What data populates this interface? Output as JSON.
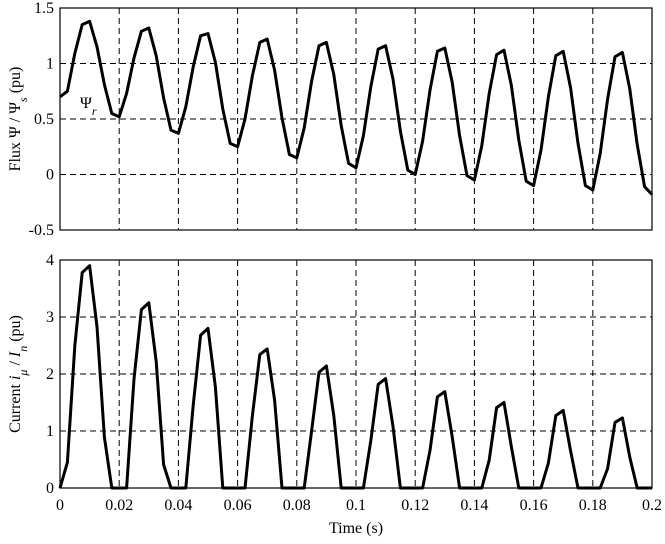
{
  "chart_data": [
    {
      "type": "line",
      "ylabel": [
        "Flux  Ψ / Ψ",
        "s",
        "  (pu)"
      ],
      "annotation": [
        "Ψ",
        "r"
      ],
      "color": "#000000",
      "grid": true,
      "xlim": [
        0,
        0.2
      ],
      "xticks": [
        0,
        0.02,
        0.04,
        0.06,
        0.08,
        0.1,
        0.12,
        0.14,
        0.16,
        0.18,
        0.2
      ],
      "ylim": [
        -0.5,
        1.5
      ],
      "yticks": [
        -0.5,
        0,
        0.5,
        1,
        1.5
      ],
      "x": [
        0,
        0.0025,
        0.005,
        0.0075,
        0.01,
        0.0125,
        0.015,
        0.0175,
        0.02,
        0.0225,
        0.025,
        0.0275,
        0.03,
        0.0325,
        0.035,
        0.0375,
        0.04,
        0.0425,
        0.045,
        0.0475,
        0.05,
        0.0525,
        0.055,
        0.0575,
        0.06,
        0.0625,
        0.065,
        0.0675,
        0.07,
        0.0725,
        0.075,
        0.0775,
        0.08,
        0.0825,
        0.085,
        0.0875,
        0.09,
        0.0925,
        0.095,
        0.0975,
        0.1,
        0.1025,
        0.105,
        0.1075,
        0.11,
        0.1125,
        0.115,
        0.1175,
        0.12,
        0.1225,
        0.125,
        0.1275,
        0.13,
        0.1325,
        0.135,
        0.1375,
        0.14,
        0.1425,
        0.145,
        0.1475,
        0.15,
        0.1525,
        0.155,
        0.1575,
        0.16,
        0.1625,
        0.165,
        0.1675,
        0.17,
        0.1725,
        0.175,
        0.1775,
        0.18,
        0.1825,
        0.185,
        0.1875,
        0.19,
        0.1925,
        0.195,
        0.1975,
        0.2
      ],
      "values": [
        0.7,
        0.75,
        1.09,
        1.35,
        1.38,
        1.15,
        0.81,
        0.55,
        0.52,
        0.73,
        1.05,
        1.29,
        1.32,
        1.07,
        0.69,
        0.4,
        0.37,
        0.61,
        0.97,
        1.25,
        1.27,
        1.01,
        0.59,
        0.28,
        0.25,
        0.5,
        0.89,
        1.19,
        1.22,
        0.94,
        0.51,
        0.18,
        0.15,
        0.42,
        0.84,
        1.16,
        1.19,
        0.9,
        0.44,
        0.1,
        0.06,
        0.35,
        0.79,
        1.13,
        1.16,
        0.86,
        0.39,
        0.04,
        0,
        0.3,
        0.76,
        1.11,
        1.14,
        0.83,
        0.35,
        -0.01,
        -0.05,
        0.26,
        0.73,
        1.08,
        1.12,
        0.8,
        0.31,
        -0.06,
        -0.1,
        0.22,
        0.7,
        1.07,
        1.11,
        0.78,
        0.28,
        -0.1,
        -0.14,
        0.19,
        0.68,
        1.06,
        1.1,
        0.77,
        0.27,
        -0.11,
        -0.18
      ]
    },
    {
      "type": "line",
      "ylabel": [
        "Current  ",
        "i",
        "μ",
        " / ",
        "I",
        "n",
        "  (pu)"
      ],
      "xlabel": "Time (s)",
      "color": "#000000",
      "grid": true,
      "xlim": [
        0,
        0.2
      ],
      "xticks": [
        0,
        0.02,
        0.04,
        0.06,
        0.08,
        0.1,
        0.12,
        0.14,
        0.16,
        0.18,
        0.2
      ],
      "ylim": [
        0,
        4
      ],
      "yticks": [
        0,
        1,
        2,
        3,
        4
      ],
      "x": [
        0,
        0.0025,
        0.005,
        0.0075,
        0.01,
        0.0125,
        0.015,
        0.0175,
        0.02,
        0.0225,
        0.025,
        0.0275,
        0.03,
        0.0325,
        0.035,
        0.0375,
        0.04,
        0.0425,
        0.045,
        0.0475,
        0.05,
        0.0525,
        0.055,
        0.0575,
        0.06,
        0.0625,
        0.065,
        0.0675,
        0.07,
        0.0725,
        0.075,
        0.0775,
        0.08,
        0.0825,
        0.085,
        0.0875,
        0.09,
        0.0925,
        0.095,
        0.0975,
        0.1,
        0.1025,
        0.105,
        0.1075,
        0.11,
        0.1125,
        0.115,
        0.1175,
        0.12,
        0.1225,
        0.125,
        0.1275,
        0.13,
        0.1325,
        0.135,
        0.1375,
        0.14,
        0.1425,
        0.145,
        0.1475,
        0.15,
        0.1525,
        0.155,
        0.1575,
        0.16,
        0.1625,
        0.165,
        0.1675,
        0.17,
        0.1725,
        0.175,
        0.1775,
        0.18,
        0.1825,
        0.185,
        0.1875,
        0.19,
        0.1925,
        0.195,
        0.1975,
        0.2
      ],
      "values": [
        0,
        0.45,
        2.49,
        3.78,
        3.9,
        2.83,
        0.89,
        0,
        0,
        0,
        1.91,
        3.13,
        3.25,
        2.22,
        0.41,
        0,
        0,
        0,
        1.45,
        2.68,
        2.8,
        1.77,
        0,
        0,
        0,
        0,
        1.27,
        2.34,
        2.44,
        1.54,
        0,
        0,
        0,
        0,
        1,
        2.03,
        2.14,
        1.27,
        0,
        0,
        0,
        0,
        0.83,
        1.82,
        1.92,
        1.08,
        0,
        0,
        0,
        0,
        0.66,
        1.6,
        1.69,
        0.9,
        0,
        0,
        0,
        0,
        0.49,
        1.41,
        1.5,
        0.72,
        0,
        0,
        0,
        0,
        0.44,
        1.27,
        1.36,
        0.65,
        0,
        0,
        0,
        0,
        0.34,
        1.15,
        1.23,
        0.54,
        0,
        0,
        0
      ]
    }
  ]
}
